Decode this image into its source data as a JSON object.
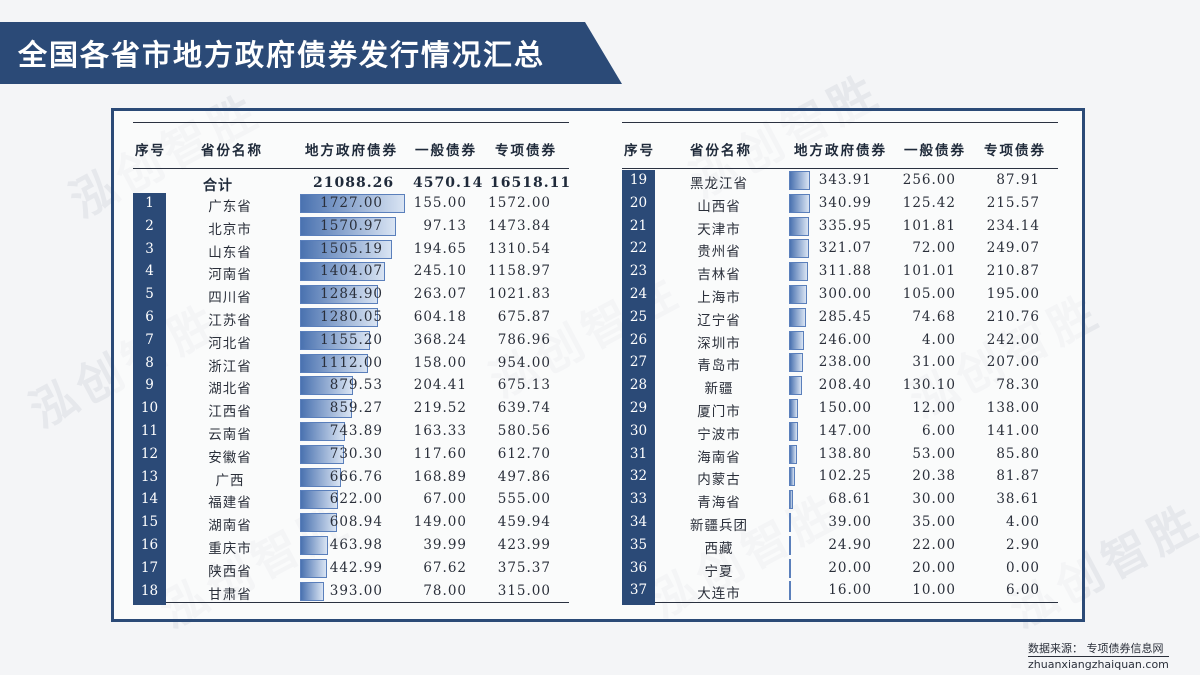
{
  "title": "全国各省市地方政府债券发行情况汇总",
  "watermark": "泓创智胜",
  "colors": {
    "banner": "#2b4a77",
    "bar_start": "#4a72b0",
    "bar_end": "#d9e4f3"
  },
  "headers": {
    "idx": "序号",
    "name": "省份名称",
    "total": "地方政府债券",
    "general": "一般债券",
    "special": "专项债券"
  },
  "summary": {
    "label": "合计",
    "total": "21088.26",
    "general": "4570.14",
    "special": "16518.11"
  },
  "left_rows": [
    {
      "idx": "1",
      "name": "广东省",
      "total": "1727.00",
      "general": "155.00",
      "special": "1572.00",
      "value": 1727.0
    },
    {
      "idx": "2",
      "name": "北京市",
      "total": "1570.97",
      "general": "97.13",
      "special": "1473.84",
      "value": 1570.97
    },
    {
      "idx": "3",
      "name": "山东省",
      "total": "1505.19",
      "general": "194.65",
      "special": "1310.54",
      "value": 1505.19
    },
    {
      "idx": "4",
      "name": "河南省",
      "total": "1404.07",
      "general": "245.10",
      "special": "1158.97",
      "value": 1404.07
    },
    {
      "idx": "5",
      "name": "四川省",
      "total": "1284.90",
      "general": "263.07",
      "special": "1021.83",
      "value": 1284.9
    },
    {
      "idx": "6",
      "name": "江苏省",
      "total": "1280.05",
      "general": "604.18",
      "special": "675.87",
      "value": 1280.05
    },
    {
      "idx": "7",
      "name": "河北省",
      "total": "1155.20",
      "general": "368.24",
      "special": "786.96",
      "value": 1155.2
    },
    {
      "idx": "8",
      "name": "浙江省",
      "total": "1112.00",
      "general": "158.00",
      "special": "954.00",
      "value": 1112.0
    },
    {
      "idx": "9",
      "name": "湖北省",
      "total": "879.53",
      "general": "204.41",
      "special": "675.13",
      "value": 879.53
    },
    {
      "idx": "10",
      "name": "江西省",
      "total": "859.27",
      "general": "219.52",
      "special": "639.74",
      "value": 859.27
    },
    {
      "idx": "11",
      "name": "云南省",
      "total": "743.89",
      "general": "163.33",
      "special": "580.56",
      "value": 743.89
    },
    {
      "idx": "12",
      "name": "安徽省",
      "total": "730.30",
      "general": "117.60",
      "special": "612.70",
      "value": 730.3
    },
    {
      "idx": "13",
      "name": "广西",
      "total": "666.76",
      "general": "168.89",
      "special": "497.86",
      "value": 666.76
    },
    {
      "idx": "14",
      "name": "福建省",
      "total": "622.00",
      "general": "67.00",
      "special": "555.00",
      "value": 622.0
    },
    {
      "idx": "15",
      "name": "湖南省",
      "total": "608.94",
      "general": "149.00",
      "special": "459.94",
      "value": 608.94
    },
    {
      "idx": "16",
      "name": "重庆市",
      "total": "463.98",
      "general": "39.99",
      "special": "423.99",
      "value": 463.98
    },
    {
      "idx": "17",
      "name": "陕西省",
      "total": "442.99",
      "general": "67.62",
      "special": "375.37",
      "value": 442.99
    },
    {
      "idx": "18",
      "name": "甘肃省",
      "total": "393.00",
      "general": "78.00",
      "special": "315.00",
      "value": 393.0
    }
  ],
  "right_rows": [
    {
      "idx": "19",
      "name": "黑龙江省",
      "total": "343.91",
      "general": "256.00",
      "special": "87.91",
      "value": 343.91
    },
    {
      "idx": "20",
      "name": "山西省",
      "total": "340.99",
      "general": "125.42",
      "special": "215.57",
      "value": 340.99
    },
    {
      "idx": "21",
      "name": "天津市",
      "total": "335.95",
      "general": "101.81",
      "special": "234.14",
      "value": 335.95
    },
    {
      "idx": "22",
      "name": "贵州省",
      "total": "321.07",
      "general": "72.00",
      "special": "249.07",
      "value": 321.07
    },
    {
      "idx": "23",
      "name": "吉林省",
      "total": "311.88",
      "general": "101.01",
      "special": "210.87",
      "value": 311.88
    },
    {
      "idx": "24",
      "name": "上海市",
      "total": "300.00",
      "general": "105.00",
      "special": "195.00",
      "value": 300.0
    },
    {
      "idx": "25",
      "name": "辽宁省",
      "total": "285.45",
      "general": "74.68",
      "special": "210.76",
      "value": 285.45
    },
    {
      "idx": "26",
      "name": "深圳市",
      "total": "246.00",
      "general": "4.00",
      "special": "242.00",
      "value": 246.0
    },
    {
      "idx": "27",
      "name": "青岛市",
      "total": "238.00",
      "general": "31.00",
      "special": "207.00",
      "value": 238.0
    },
    {
      "idx": "28",
      "name": "新疆",
      "total": "208.40",
      "general": "130.10",
      "special": "78.30",
      "value": 208.4
    },
    {
      "idx": "29",
      "name": "厦门市",
      "total": "150.00",
      "general": "12.00",
      "special": "138.00",
      "value": 150.0
    },
    {
      "idx": "30",
      "name": "宁波市",
      "total": "147.00",
      "general": "6.00",
      "special": "141.00",
      "value": 147.0
    },
    {
      "idx": "31",
      "name": "海南省",
      "total": "138.80",
      "general": "53.00",
      "special": "85.80",
      "value": 138.8
    },
    {
      "idx": "32",
      "name": "内蒙古",
      "total": "102.25",
      "general": "20.38",
      "special": "81.87",
      "value": 102.25
    },
    {
      "idx": "33",
      "name": "青海省",
      "total": "68.61",
      "general": "30.00",
      "special": "38.61",
      "value": 68.61
    },
    {
      "idx": "34",
      "name": "新疆兵团",
      "total": "39.00",
      "general": "35.00",
      "special": "4.00",
      "value": 39.0
    },
    {
      "idx": "35",
      "name": "西藏",
      "total": "24.90",
      "general": "22.00",
      "special": "2.90",
      "value": 24.9
    },
    {
      "idx": "36",
      "name": "宁夏",
      "total": "20.00",
      "general": "20.00",
      "special": "0.00",
      "value": 20.0
    },
    {
      "idx": "37",
      "name": "大连市",
      "total": "16.00",
      "general": "10.00",
      "special": "6.00",
      "value": 16.0
    }
  ],
  "footer": {
    "source": "数据来源：  专项债券信息网",
    "url": "zhuanxiangzhaiquan.com"
  }
}
